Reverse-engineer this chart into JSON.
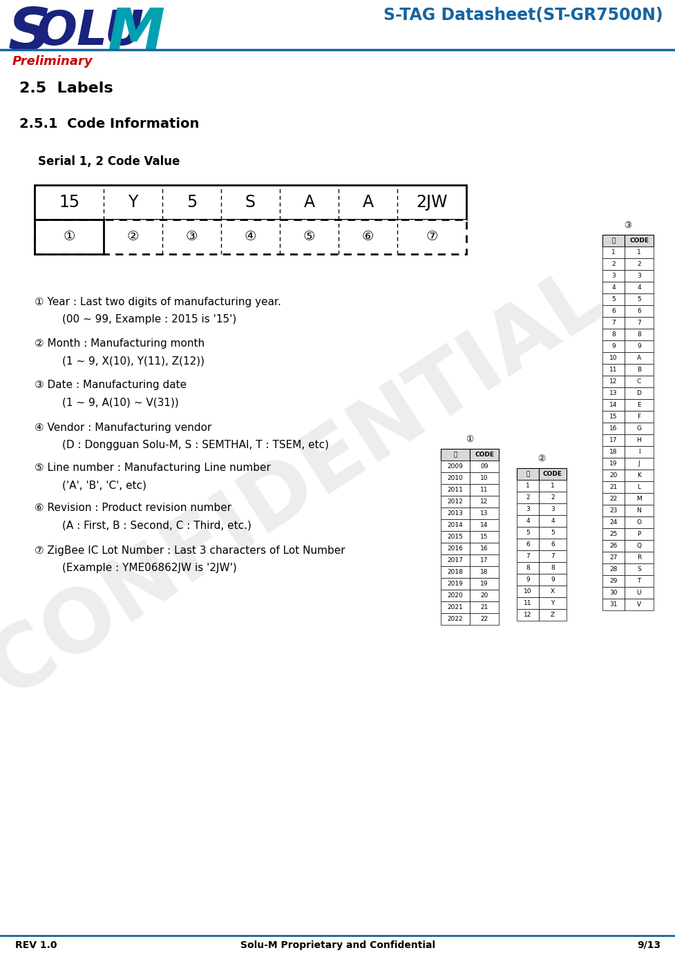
{
  "title_right": "S-TAG Datasheet(ST-GR7500N)",
  "title_right_color": "#1565a0",
  "preliminary_text": "Preliminary",
  "preliminary_color": "#cc0000",
  "section_title": "2.5  Labels",
  "subsection_title": "2.5.1  Code Information",
  "serial_label": "Serial 1, 2 Code Value",
  "code_values": [
    "15",
    "Y",
    "5",
    "S",
    "A",
    "A",
    "2JW"
  ],
  "descriptions": [
    [
      "① Year : Last two digits of manufacturing year.",
      "          (00 ~ 99, Example : 2015 is '15')"
    ],
    [
      "② Month : Manufacturing month",
      "          (1 ~ 9, X(10), Y(11), Z(12))"
    ],
    [
      "③ Date : Manufacturing date",
      "          (1 ~ 9, A(10) ~ V(31))"
    ],
    [
      "④ Vendor : Manufacturing vendor",
      "          (D : Dongguan Solu-M, S : SEMTHAI, T : TSEM, etc)"
    ],
    [
      "⑤ Line number : Manufacturing Line number",
      "          ('A', 'B', 'C', etc)"
    ],
    [
      "⑥ Revision : Product revision number",
      "          (A : First, B : Second, C : Third, etc.)"
    ],
    [
      "⑦ ZigBee IC Lot Number : Last 3 characters of Lot Number",
      "          (Example : YME06862JW is '2JW')"
    ]
  ],
  "footer_left": "REV 1.0",
  "footer_center": "Solu-M Proprietary and Confidential",
  "footer_right": "9/13",
  "header_line_color": "#1565a0",
  "footer_line_color": "#1565a0",
  "table1_header": [
    "년",
    "CODE"
  ],
  "table1_data": [
    [
      "2009",
      "09"
    ],
    [
      "2010",
      "10"
    ],
    [
      "2011",
      "11"
    ],
    [
      "2012",
      "12"
    ],
    [
      "2013",
      "13"
    ],
    [
      "2014",
      "14"
    ],
    [
      "2015",
      "15"
    ],
    [
      "2016",
      "16"
    ],
    [
      "2017",
      "17"
    ],
    [
      "2018",
      "18"
    ],
    [
      "2019",
      "19"
    ],
    [
      "2020",
      "20"
    ],
    [
      "2021",
      "21"
    ],
    [
      "2022",
      "22"
    ]
  ],
  "table2_header": [
    "월",
    "CODE"
  ],
  "table2_data": [
    [
      "1",
      "1"
    ],
    [
      "2",
      "2"
    ],
    [
      "3",
      "3"
    ],
    [
      "4",
      "4"
    ],
    [
      "5",
      "5"
    ],
    [
      "6",
      "6"
    ],
    [
      "7",
      "7"
    ],
    [
      "8",
      "8"
    ],
    [
      "9",
      "9"
    ],
    [
      "10",
      "X"
    ],
    [
      "11",
      "Y"
    ],
    [
      "12",
      "Z"
    ]
  ],
  "table3_header": [
    "일",
    "CODE"
  ],
  "table3_data": [
    [
      "1",
      "1"
    ],
    [
      "2",
      "2"
    ],
    [
      "3",
      "3"
    ],
    [
      "4",
      "4"
    ],
    [
      "5",
      "5"
    ],
    [
      "6",
      "6"
    ],
    [
      "7",
      "7"
    ],
    [
      "8",
      "8"
    ],
    [
      "9",
      "9"
    ],
    [
      "10",
      "A"
    ],
    [
      "11",
      "B"
    ],
    [
      "12",
      "C"
    ],
    [
      "13",
      "D"
    ],
    [
      "14",
      "E"
    ],
    [
      "15",
      "F"
    ],
    [
      "16",
      "G"
    ],
    [
      "17",
      "H"
    ],
    [
      "18",
      "I"
    ],
    [
      "19",
      "J"
    ],
    [
      "20",
      "K"
    ],
    [
      "21",
      "L"
    ],
    [
      "22",
      "M"
    ],
    [
      "23",
      "N"
    ],
    [
      "24",
      "O"
    ],
    [
      "25",
      "P"
    ],
    [
      "26",
      "Q"
    ],
    [
      "27",
      "R"
    ],
    [
      "28",
      "S"
    ],
    [
      "29",
      "T"
    ],
    [
      "30",
      "U"
    ],
    [
      "31",
      "V"
    ]
  ],
  "confidential_text": "CONFIDENTIAL",
  "bg_color": "#ffffff"
}
